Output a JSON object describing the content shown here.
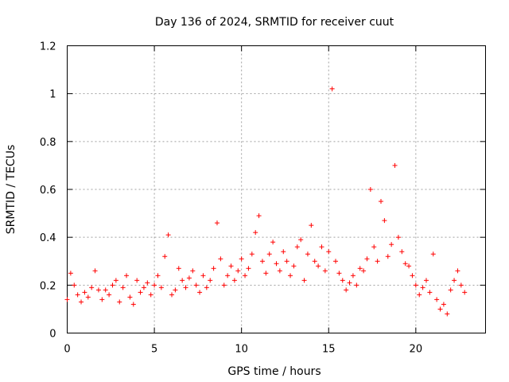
{
  "chart_data": {
    "type": "scatter",
    "title": "Day 136 of 2024, SRMTID for receiver cuut",
    "xlabel": "GPS time / hours",
    "ylabel": "SRMTID / TECUs",
    "xlim": [
      0,
      24
    ],
    "ylim": [
      0,
      1.2
    ],
    "xticks": [
      0,
      5,
      10,
      15,
      20
    ],
    "xtick_labels": [
      "0",
      "5",
      "10",
      "15",
      "20"
    ],
    "yticks": [
      0,
      0.2,
      0.4,
      0.6,
      0.8,
      1.0,
      1.2
    ],
    "ytick_labels": [
      "0",
      "0.2",
      "0.4",
      "0.6",
      "0.8",
      "1",
      "1.2"
    ],
    "grid": true,
    "marker": "+",
    "color": "#ff0000",
    "series": [
      {
        "name": "SRMTID",
        "x": [
          0.0,
          0.2,
          0.4,
          0.6,
          0.8,
          1.0,
          1.2,
          1.4,
          1.6,
          1.8,
          2.0,
          2.2,
          2.4,
          2.6,
          2.8,
          3.0,
          3.2,
          3.4,
          3.6,
          3.8,
          4.0,
          4.2,
          4.4,
          4.6,
          4.8,
          5.0,
          5.2,
          5.4,
          5.6,
          5.8,
          6.0,
          6.2,
          6.4,
          6.6,
          6.8,
          7.0,
          7.2,
          7.4,
          7.6,
          7.8,
          8.0,
          8.2,
          8.4,
          8.6,
          8.8,
          9.0,
          9.2,
          9.4,
          9.6,
          9.8,
          10.0,
          10.2,
          10.4,
          10.6,
          10.8,
          11.0,
          11.2,
          11.4,
          11.6,
          11.8,
          12.0,
          12.2,
          12.4,
          12.6,
          12.8,
          13.0,
          13.2,
          13.4,
          13.6,
          13.8,
          14.0,
          14.2,
          14.4,
          14.6,
          14.8,
          15.0,
          15.2,
          15.4,
          15.6,
          15.8,
          16.0,
          16.2,
          16.4,
          16.6,
          16.8,
          17.0,
          17.2,
          17.4,
          17.6,
          17.8,
          18.0,
          18.2,
          18.4,
          18.6,
          18.8,
          19.0,
          19.2,
          19.4,
          19.6,
          19.8,
          20.0,
          20.2,
          20.4,
          20.6,
          20.8,
          21.0,
          21.2,
          21.4,
          21.6,
          21.8,
          22.0,
          22.2,
          22.4,
          22.6,
          22.8
        ],
        "y": [
          0.14,
          0.25,
          0.2,
          0.16,
          0.13,
          0.17,
          0.15,
          0.19,
          0.26,
          0.18,
          0.14,
          0.18,
          0.16,
          0.2,
          0.22,
          0.13,
          0.19,
          0.24,
          0.15,
          0.12,
          0.22,
          0.17,
          0.19,
          0.21,
          0.16,
          0.2,
          0.24,
          0.19,
          0.32,
          0.41,
          0.16,
          0.18,
          0.27,
          0.22,
          0.19,
          0.23,
          0.26,
          0.2,
          0.17,
          0.24,
          0.19,
          0.22,
          0.27,
          0.46,
          0.31,
          0.2,
          0.24,
          0.28,
          0.22,
          0.26,
          0.31,
          0.24,
          0.27,
          0.33,
          0.42,
          0.49,
          0.3,
          0.25,
          0.33,
          0.38,
          0.29,
          0.26,
          0.34,
          0.3,
          0.24,
          0.28,
          0.36,
          0.39,
          0.22,
          0.33,
          0.45,
          0.3,
          0.28,
          0.36,
          0.26,
          0.34,
          1.02,
          0.3,
          0.25,
          0.22,
          0.18,
          0.21,
          0.24,
          0.2,
          0.27,
          0.26,
          0.31,
          0.6,
          0.36,
          0.3,
          0.55,
          0.47,
          0.32,
          0.37,
          0.7,
          0.4,
          0.34,
          0.29,
          0.28,
          0.24,
          0.2,
          0.16,
          0.19,
          0.22,
          0.17,
          0.33,
          0.14,
          0.1,
          0.12,
          0.08,
          0.18,
          0.22,
          0.26,
          0.2,
          0.17
        ]
      }
    ]
  }
}
